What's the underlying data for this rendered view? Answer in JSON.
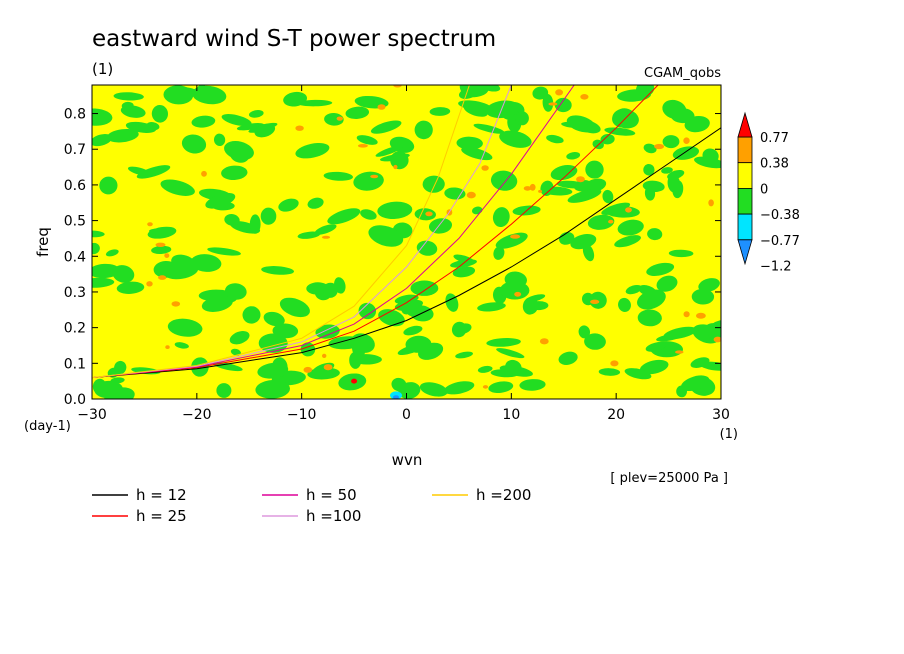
{
  "chart_data": {
    "type": "contour",
    "title": "eastward wind S-T power spectrum",
    "title_unit": "(1)",
    "dataset_label": "CGAM_qobs",
    "xlabel": "wvn",
    "x_unit": "(1)",
    "ylabel": "freq",
    "y_unit": "(day-1)",
    "xlim": [
      -30,
      30
    ],
    "ylim": [
      0.0,
      0.88
    ],
    "xticks": [
      -30,
      -20,
      -10,
      0,
      10,
      20,
      30
    ],
    "xtick_labels": [
      "−30",
      "−20",
      "−10",
      "0",
      "10",
      "20",
      "30"
    ],
    "yticks": [
      0.0,
      0.1,
      0.2,
      0.3,
      0.4,
      0.5,
      0.6,
      0.7,
      0.8
    ],
    "ytick_labels": [
      "0.0",
      "0.1",
      "0.2",
      "0.3",
      "0.4",
      "0.5",
      "0.6",
      "0.7",
      "0.8"
    ],
    "colorbar": {
      "levels": [
        -1.2,
        -0.77,
        -0.38,
        0,
        0.38,
        0.77
      ],
      "level_labels": [
        "−1.2",
        "−0.77",
        "−0.38",
        "0",
        "0.38",
        "0.77"
      ],
      "colors": [
        "#1e90ff",
        "#00e5ff",
        "#22dd22",
        "#ffff00",
        "#ffa000",
        "#ff0000"
      ],
      "dominant_fill": "#ffff00",
      "secondary_fill": "#22dd22"
    },
    "annotation": "[ plev=25000 Pa ]",
    "series": [
      {
        "name": "h = 12",
        "color": "#000000",
        "x": [
          -30,
          -20,
          -10,
          -5,
          0,
          5,
          10,
          15,
          20,
          25,
          30
        ],
        "y": [
          0.06,
          0.085,
          0.13,
          0.17,
          0.22,
          0.29,
          0.37,
          0.46,
          0.56,
          0.66,
          0.76
        ]
      },
      {
        "name": "h = 25",
        "color": "#ff0000",
        "x": [
          -30,
          -20,
          -10,
          -5,
          0,
          5,
          10,
          15,
          20,
          24
        ],
        "y": [
          0.06,
          0.088,
          0.14,
          0.19,
          0.27,
          0.37,
          0.49,
          0.62,
          0.76,
          0.88
        ]
      },
      {
        "name": "h = 50",
        "color": "#dd0099",
        "x": [
          -30,
          -20,
          -10,
          -5,
          0,
          5,
          10,
          16
        ],
        "y": [
          0.06,
          0.09,
          0.15,
          0.21,
          0.31,
          0.45,
          0.63,
          0.88
        ]
      },
      {
        "name": "h =100",
        "color": "#dd99dd",
        "x": [
          -30,
          -20,
          -10,
          -5,
          0,
          4,
          7,
          10
        ],
        "y": [
          0.06,
          0.092,
          0.16,
          0.23,
          0.37,
          0.52,
          0.66,
          0.88
        ]
      },
      {
        "name": "h =200",
        "color": "#ffcc00",
        "x": [
          -30,
          -20,
          -10,
          -5,
          0,
          3,
          6
        ],
        "y": [
          0.06,
          0.094,
          0.17,
          0.26,
          0.43,
          0.62,
          0.88
        ]
      }
    ]
  }
}
